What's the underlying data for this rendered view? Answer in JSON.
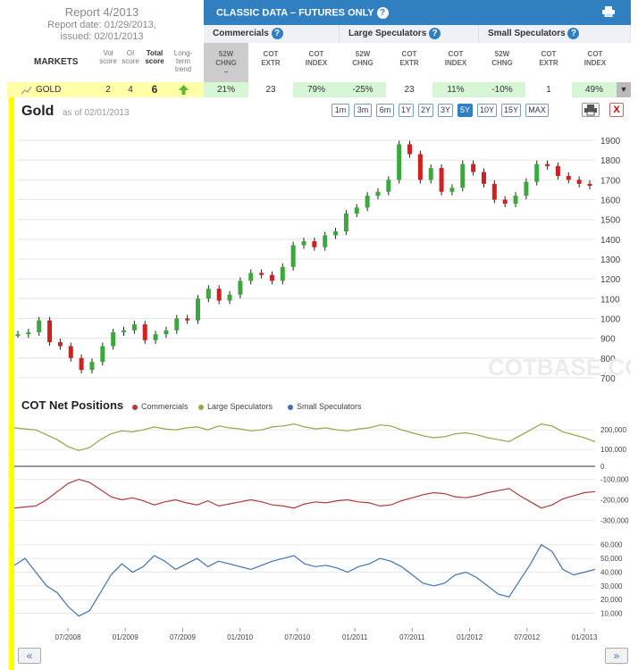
{
  "report": {
    "title": "Report 4/2013",
    "date_line": "Report date: 01/29/2013,",
    "issued_line": "issued: 02/01/2013"
  },
  "columns": {
    "markets": "MARKETS",
    "vol": "Vol\nscore",
    "oi": "OI\nscore",
    "total": "Total\nscore",
    "trend": "Long-\nterm\ntrend"
  },
  "classic": {
    "title": "CLASSIC DATA – FUTURES ONLY",
    "help": "?",
    "groups": [
      {
        "name": "Commercials",
        "help": "?"
      },
      {
        "name": "Large Speculators",
        "help": "?"
      },
      {
        "name": "Small Speculators",
        "help": "?"
      }
    ],
    "subcols": [
      "52W\nCHNG\n–",
      "COT\nEXTR",
      "COT\nINDEX",
      "52W\nCHNG",
      "COT\nEXTR",
      "COT\nINDEX",
      "52W\nCHNG",
      "COT\nEXTR",
      "COT\nINDEX"
    ]
  },
  "gold_row": {
    "name": "GOLD",
    "vol": "2",
    "oi": "4",
    "total": "6",
    "trend_icon": "up-arrow-icon",
    "values": [
      "21%",
      "23",
      "79%",
      "-25%",
      "23",
      "11%",
      "-10%",
      "1",
      "49%"
    ],
    "expand": "▼"
  },
  "chart": {
    "title": "Gold",
    "asof": "as of 02/01/2013",
    "ranges": [
      "1m",
      "3m",
      "6m",
      "1Y",
      "2Y",
      "3Y",
      "5Y",
      "10Y",
      "15Y",
      "MAX"
    ],
    "active_range": "5Y",
    "close": "X",
    "watermark": "COTBASE.COM"
  },
  "cot": {
    "title": "COT Net Positions",
    "legend": [
      {
        "name": "Commercials",
        "color": "#b03a3a"
      },
      {
        "name": "Large Speculators",
        "color": "#8aab45"
      },
      {
        "name": "Small Speculators",
        "color": "#3f71b0"
      }
    ]
  },
  "nav": {
    "prev": "«",
    "next": "»"
  },
  "chart_data": [
    {
      "type": "line",
      "title": "Gold",
      "ylim": [
        650,
        1950
      ],
      "yticks": [
        700,
        800,
        900,
        1000,
        1100,
        1200,
        1300,
        1400,
        1500,
        1600,
        1700,
        1800,
        1900
      ],
      "series": [
        {
          "values": [
            920,
            930,
            990,
            880,
            860,
            800,
            740,
            780,
            860,
            930,
            940,
            970,
            890,
            920,
            940,
            1000,
            990,
            1100,
            1150,
            1090,
            1120,
            1190,
            1230,
            1220,
            1190,
            1260,
            1370,
            1390,
            1360,
            1420,
            1440,
            1530,
            1560,
            1620,
            1640,
            1700,
            1880,
            1830,
            1700,
            1760,
            1640,
            1660,
            1780,
            1740,
            1680,
            1600,
            1580,
            1620,
            1690,
            1780,
            1770,
            1720,
            1700,
            1680,
            1670
          ]
        }
      ]
    },
    {
      "type": "line",
      "title": "COT Net Positions",
      "xticks": [
        "07/2008",
        "01/2009",
        "07/2009",
        "01/2010",
        "07/2010",
        "01/2011",
        "07/2011",
        "01/2012",
        "07/2012",
        "01/2013"
      ],
      "panels": [
        {
          "name": "Large Speculators",
          "yticks": [
            "100,000",
            "200,000"
          ],
          "values": [
            210,
            205,
            200,
            175,
            150,
            115,
            95,
            110,
            150,
            180,
            195,
            190,
            200,
            215,
            205,
            200,
            210,
            215,
            200,
            220,
            210,
            205,
            195,
            200,
            215,
            220,
            230,
            215,
            205,
            210,
            200,
            195,
            205,
            210,
            225,
            220,
            200,
            185,
            170,
            160,
            165,
            180,
            185,
            175,
            160,
            150,
            140,
            170,
            200,
            230,
            220,
            190,
            175,
            160,
            140
          ]
        },
        {
          "name": "Commercials",
          "yticks": [
            "-100,000",
            "-200,000",
            "-300,000"
          ],
          "values": [
            -240,
            -235,
            -230,
            -200,
            -160,
            -120,
            -100,
            -115,
            -150,
            -185,
            -200,
            -190,
            -205,
            -225,
            -210,
            -200,
            -215,
            -225,
            -205,
            -230,
            -220,
            -210,
            -200,
            -210,
            -225,
            -230,
            -240,
            -220,
            -210,
            -215,
            -205,
            -200,
            -210,
            -215,
            -230,
            -225,
            -205,
            -190,
            -175,
            -165,
            -170,
            -185,
            -190,
            -180,
            -165,
            -155,
            -145,
            -180,
            -210,
            -240,
            -225,
            -195,
            -180,
            -165,
            -160
          ]
        },
        {
          "name": "Small Speculators",
          "yticks": [
            "10,000",
            "20,000",
            "30,000",
            "40,000",
            "50,000",
            "60,000"
          ],
          "values": [
            45,
            50,
            40,
            30,
            25,
            15,
            8,
            12,
            25,
            38,
            46,
            40,
            44,
            52,
            48,
            42,
            46,
            50,
            44,
            48,
            46,
            44,
            42,
            45,
            48,
            50,
            52,
            46,
            44,
            45,
            43,
            40,
            44,
            46,
            50,
            48,
            44,
            38,
            32,
            30,
            32,
            38,
            40,
            36,
            30,
            24,
            22,
            34,
            46,
            60,
            55,
            42,
            38,
            40,
            42
          ]
        }
      ]
    }
  ]
}
